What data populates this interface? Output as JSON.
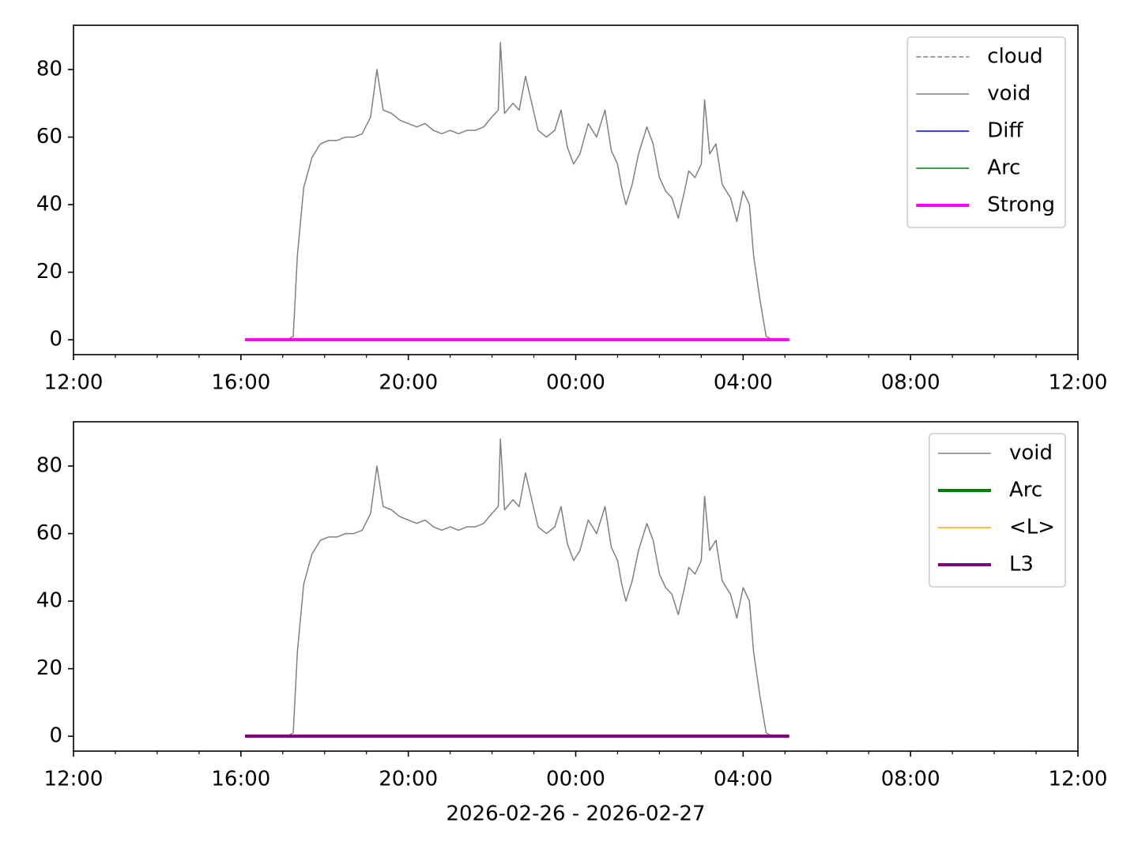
{
  "chart_data": [
    {
      "type": "line",
      "legend": "upper right",
      "xlim": [
        0,
        24
      ],
      "xticks": [
        {
          "value": 0,
          "label": "12:00"
        },
        {
          "value": 4,
          "label": "16:00"
        },
        {
          "value": 8,
          "label": "20:00"
        },
        {
          "value": 12,
          "label": "00:00"
        },
        {
          "value": 16,
          "label": "04:00"
        },
        {
          "value": 20,
          "label": "08:00"
        },
        {
          "value": 24,
          "label": "12:00"
        }
      ],
      "xminorticks": [
        1,
        2,
        3,
        5,
        6,
        7,
        9,
        10,
        11,
        13,
        14,
        15,
        17,
        18,
        19,
        21,
        22,
        23
      ],
      "ylim": [
        -4.4,
        93.1
      ],
      "yticks": [
        0,
        20,
        40,
        60,
        80
      ],
      "series": [
        {
          "name": "cloud",
          "color": "#808080",
          "linewidth": 1.5,
          "linestyle": "dashed",
          "x": [
            4.1,
            17.1
          ],
          "values": [
            0,
            0
          ]
        },
        {
          "name": "void",
          "color": "#808080",
          "linewidth": 1.5,
          "linestyle": "solid",
          "x": [
            4.1,
            4.6,
            5.1,
            5.25,
            5.35,
            5.5,
            5.7,
            5.9,
            6.1,
            6.3,
            6.5,
            6.7,
            6.9,
            7.1,
            7.25,
            7.4,
            7.6,
            7.8,
            8.0,
            8.2,
            8.4,
            8.6,
            8.8,
            9.0,
            9.2,
            9.4,
            9.6,
            9.8,
            10.0,
            10.15,
            10.2,
            10.3,
            10.5,
            10.65,
            10.8,
            10.95,
            11.1,
            11.3,
            11.5,
            11.65,
            11.8,
            11.95,
            12.1,
            12.3,
            12.5,
            12.7,
            12.85,
            13.0,
            13.1,
            13.2,
            13.35,
            13.5,
            13.7,
            13.85,
            14.0,
            14.15,
            14.3,
            14.45,
            14.6,
            14.7,
            14.85,
            15.0,
            15.08,
            15.2,
            15.35,
            15.5,
            15.7,
            15.85,
            16.0,
            16.15,
            16.25,
            16.4,
            16.55,
            16.7,
            16.9,
            17.1
          ],
          "values": [
            0,
            0,
            0,
            1,
            25,
            45,
            54,
            58,
            59,
            59,
            60,
            60,
            61,
            66,
            80,
            68,
            67,
            65,
            64,
            63,
            64,
            62,
            61,
            62,
            61,
            62,
            62,
            63,
            66,
            68,
            88,
            67,
            70,
            68,
            78,
            70,
            62,
            60,
            62,
            68,
            57,
            52,
            55,
            64,
            60,
            68,
            56,
            52,
            45,
            40,
            46,
            55,
            63,
            58,
            48,
            44,
            42,
            36,
            44,
            50,
            48,
            52,
            71,
            55,
            58,
            46,
            42,
            35,
            44,
            40,
            25,
            12,
            1,
            0,
            0,
            0
          ]
        },
        {
          "name": "Diff",
          "color": "#0000ff",
          "linewidth": 1.5,
          "linestyle": "solid",
          "x": [
            4.1,
            17.1
          ],
          "values": [
            0,
            0
          ]
        },
        {
          "name": "Arc",
          "color": "#008000",
          "linewidth": 1.5,
          "linestyle": "solid",
          "x": [
            4.1,
            17.1
          ],
          "values": [
            0,
            0
          ]
        },
        {
          "name": "Strong",
          "color": "#ff00ff",
          "linewidth": 4,
          "linestyle": "solid",
          "x": [
            4.1,
            17.1
          ],
          "values": [
            0,
            0
          ]
        }
      ]
    },
    {
      "type": "line",
      "legend": "upper right",
      "xlabel": "2026-02-26 - 2026-02-27",
      "xlim": [
        0,
        24
      ],
      "xticks": [
        {
          "value": 0,
          "label": "12:00"
        },
        {
          "value": 4,
          "label": "16:00"
        },
        {
          "value": 8,
          "label": "20:00"
        },
        {
          "value": 12,
          "label": "00:00"
        },
        {
          "value": 16,
          "label": "04:00"
        },
        {
          "value": 20,
          "label": "08:00"
        },
        {
          "value": 24,
          "label": "12:00"
        }
      ],
      "xminorticks": [
        1,
        2,
        3,
        5,
        6,
        7,
        9,
        10,
        11,
        13,
        14,
        15,
        17,
        18,
        19,
        21,
        22,
        23
      ],
      "ylim": [
        -4.4,
        93.1
      ],
      "yticks": [
        0,
        20,
        40,
        60,
        80
      ],
      "series": [
        {
          "name": "void",
          "color": "#808080",
          "linewidth": 1.5,
          "linestyle": "solid",
          "x": [
            4.1,
            4.6,
            5.1,
            5.25,
            5.35,
            5.5,
            5.7,
            5.9,
            6.1,
            6.3,
            6.5,
            6.7,
            6.9,
            7.1,
            7.25,
            7.4,
            7.6,
            7.8,
            8.0,
            8.2,
            8.4,
            8.6,
            8.8,
            9.0,
            9.2,
            9.4,
            9.6,
            9.8,
            10.0,
            10.15,
            10.2,
            10.3,
            10.5,
            10.65,
            10.8,
            10.95,
            11.1,
            11.3,
            11.5,
            11.65,
            11.8,
            11.95,
            12.1,
            12.3,
            12.5,
            12.7,
            12.85,
            13.0,
            13.1,
            13.2,
            13.35,
            13.5,
            13.7,
            13.85,
            14.0,
            14.15,
            14.3,
            14.45,
            14.6,
            14.7,
            14.85,
            15.0,
            15.08,
            15.2,
            15.35,
            15.5,
            15.7,
            15.85,
            16.0,
            16.15,
            16.25,
            16.4,
            16.55,
            16.7,
            16.9,
            17.1
          ],
          "values": [
            0,
            0,
            0,
            1,
            25,
            45,
            54,
            58,
            59,
            59,
            60,
            60,
            61,
            66,
            80,
            68,
            67,
            65,
            64,
            63,
            64,
            62,
            61,
            62,
            61,
            62,
            62,
            63,
            66,
            68,
            88,
            67,
            70,
            68,
            78,
            70,
            62,
            60,
            62,
            68,
            57,
            52,
            55,
            64,
            60,
            68,
            56,
            52,
            45,
            40,
            46,
            55,
            63,
            58,
            48,
            44,
            42,
            36,
            44,
            50,
            48,
            52,
            71,
            55,
            58,
            46,
            42,
            35,
            44,
            40,
            25,
            12,
            1,
            0,
            0,
            0
          ]
        },
        {
          "name": "Arc",
          "color": "#008000",
          "linewidth": 4,
          "linestyle": "solid",
          "x": [
            4.1,
            17.1
          ],
          "values": [
            0,
            0
          ]
        },
        {
          "name": "<L>",
          "color": "#ffa500",
          "linewidth": 1.5,
          "linestyle": "solid",
          "x": [
            4.1,
            17.1
          ],
          "values": [
            0,
            0
          ]
        },
        {
          "name": "L3",
          "color": "#800080",
          "linewidth": 4,
          "linestyle": "solid",
          "x": [
            4.1,
            17.1
          ],
          "values": [
            0,
            0
          ]
        }
      ]
    }
  ]
}
